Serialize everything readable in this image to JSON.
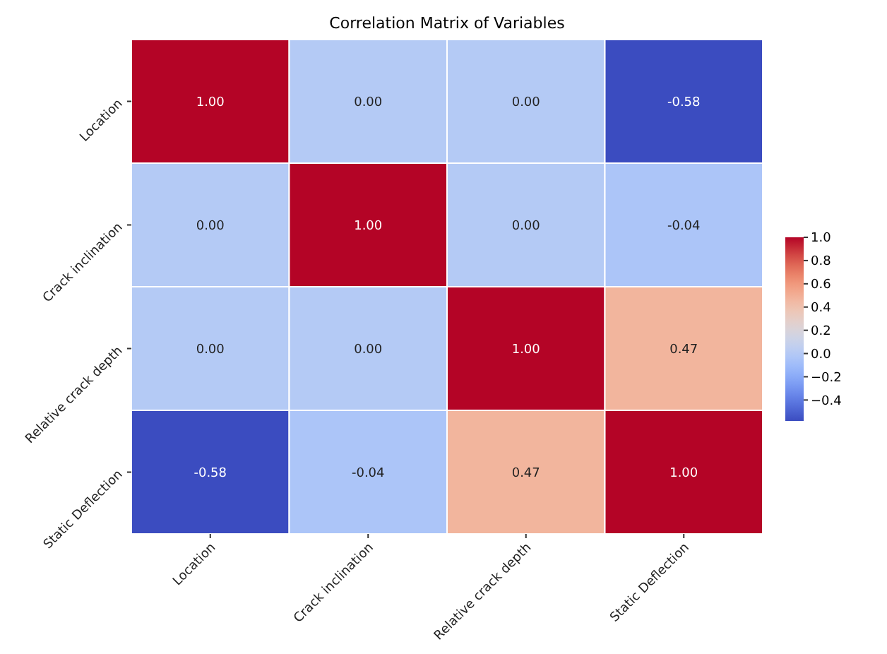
{
  "chart_data": {
    "type": "heatmap",
    "title": "Correlation Matrix of Variables",
    "categories": [
      "Location",
      "Crack inclination",
      "Relative crack depth",
      "Static Deflection"
    ],
    "y_categories": [
      "Location",
      "Crack inclination",
      "Relative crack depth",
      "Static Deflection"
    ],
    "cells": [
      [
        1.0,
        0.0,
        0.0,
        -0.58
      ],
      [
        0.0,
        1.0,
        0.0,
        -0.04
      ],
      [
        0.0,
        0.0,
        1.0,
        0.47
      ],
      [
        -0.58,
        -0.04,
        0.47,
        1.0
      ]
    ],
    "cell_labels": [
      [
        "1.00",
        "0.00",
        "0.00",
        "-0.58"
      ],
      [
        "0.00",
        "1.00",
        "0.00",
        "-0.04"
      ],
      [
        "0.00",
        "0.00",
        "1.00",
        "0.47"
      ],
      [
        "-0.58",
        "-0.04",
        "0.47",
        "1.00"
      ]
    ],
    "clim": [
      -0.58,
      1.0
    ],
    "cticks": [
      {
        "value": -0.4,
        "label": "−0.4"
      },
      {
        "value": -0.2,
        "label": "−0.2"
      },
      {
        "value": 0,
        "label": "0.0"
      },
      0.2,
      0.4,
      0.6,
      0.8,
      {
        "value": 1,
        "label": "1.0"
      }
    ]
  }
}
